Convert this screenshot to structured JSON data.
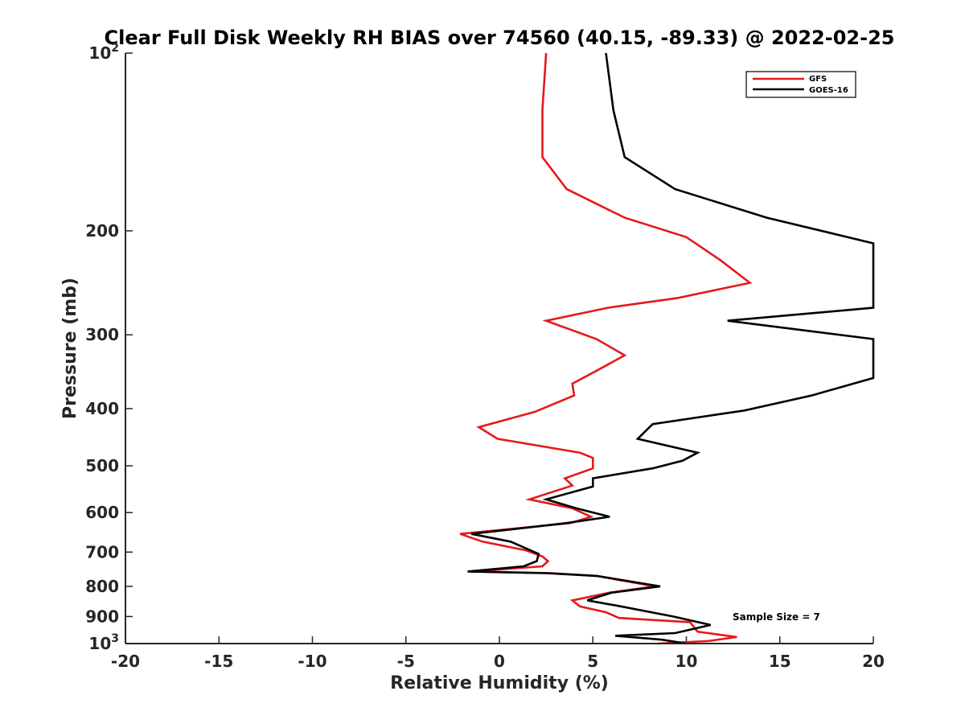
{
  "chart_data": {
    "type": "line",
    "title": "Clear Full Disk Weekly RH BIAS over 74560 (40.15, -89.33) @ 2022-02-25",
    "xlabel": "Relative Humidity (%)",
    "ylabel": "Pressure (mb)",
    "xlim": [
      -20,
      20
    ],
    "ylim": [
      100,
      1000
    ],
    "y_scale": "log",
    "y_reversed": true,
    "x_ticks": [
      "-20",
      "-15",
      "-10",
      "-5",
      "0",
      "5",
      "10",
      "15",
      "20"
    ],
    "y_ticks": [
      {
        "value": 100,
        "base": "10",
        "exp": "2"
      },
      {
        "value": 200,
        "label": "200"
      },
      {
        "value": 300,
        "label": "300"
      },
      {
        "value": 400,
        "label": "400"
      },
      {
        "value": 500,
        "label": "500"
      },
      {
        "value": 600,
        "label": "600"
      },
      {
        "value": 700,
        "label": "700"
      },
      {
        "value": 800,
        "label": "800"
      },
      {
        "value": 900,
        "label": "900"
      },
      {
        "value": 1000,
        "base": "10",
        "exp": "3"
      }
    ],
    "grid": false,
    "legend_position": "top-right",
    "annotation": "Sample Size = 7",
    "series": [
      {
        "name": "GFS",
        "color": "#e41a1c",
        "points": [
          [
            2.5,
            100
          ],
          [
            2.3,
            125
          ],
          [
            2.3,
            150
          ],
          [
            3.6,
            170
          ],
          [
            6.7,
            190
          ],
          [
            10.0,
            205
          ],
          [
            11.8,
            224
          ],
          [
            13.4,
            245
          ],
          [
            9.5,
            260
          ],
          [
            5.8,
            270
          ],
          [
            2.5,
            284
          ],
          [
            5.2,
            305
          ],
          [
            6.7,
            325
          ],
          [
            5.2,
            345
          ],
          [
            3.9,
            363
          ],
          [
            4.0,
            380
          ],
          [
            1.9,
            405
          ],
          [
            -1.1,
            430
          ],
          [
            -0.1,
            450
          ],
          [
            4.3,
            475
          ],
          [
            5.0,
            485
          ],
          [
            5.0,
            505
          ],
          [
            3.5,
            525
          ],
          [
            3.9,
            540
          ],
          [
            1.6,
            570
          ],
          [
            3.9,
            590
          ],
          [
            4.9,
            610
          ],
          [
            3.8,
            625
          ],
          [
            -2.1,
            652
          ],
          [
            -0.9,
            672
          ],
          [
            1.4,
            695
          ],
          [
            2.3,
            712
          ],
          [
            2.6,
            725
          ],
          [
            2.3,
            740
          ],
          [
            -1.5,
            755
          ],
          [
            2.8,
            760
          ],
          [
            5.2,
            768
          ],
          [
            8.3,
            800
          ],
          [
            5.9,
            820
          ],
          [
            3.9,
            845
          ],
          [
            4.3,
            865
          ],
          [
            5.7,
            885
          ],
          [
            6.4,
            905
          ],
          [
            10.2,
            920
          ],
          [
            10.6,
            955
          ],
          [
            12.7,
            975
          ],
          [
            11.2,
            990
          ],
          [
            8.5,
            1000
          ]
        ]
      },
      {
        "name": "GOES-16",
        "color": "#000000",
        "points": [
          [
            5.7,
            100
          ],
          [
            6.1,
            125
          ],
          [
            6.7,
            150
          ],
          [
            9.4,
            170
          ],
          [
            14.3,
            190
          ],
          [
            20.0,
            210
          ],
          [
            20.0,
            270
          ],
          [
            12.2,
            284
          ],
          [
            20.0,
            305
          ],
          [
            20.0,
            355
          ],
          [
            16.7,
            380
          ],
          [
            13.1,
            403
          ],
          [
            8.2,
            425
          ],
          [
            7.4,
            450
          ],
          [
            10.6,
            475
          ],
          [
            9.8,
            490
          ],
          [
            8.2,
            505
          ],
          [
            5.0,
            525
          ],
          [
            5.0,
            542
          ],
          [
            2.5,
            570
          ],
          [
            4.1,
            590
          ],
          [
            5.9,
            610
          ],
          [
            3.6,
            625
          ],
          [
            -1.5,
            652
          ],
          [
            0.6,
            672
          ],
          [
            2.1,
            705
          ],
          [
            2.0,
            725
          ],
          [
            1.3,
            740
          ],
          [
            -1.7,
            755
          ],
          [
            2.5,
            760
          ],
          [
            5.2,
            768
          ],
          [
            8.6,
            800
          ],
          [
            6.0,
            820
          ],
          [
            4.7,
            845
          ],
          [
            6.5,
            865
          ],
          [
            9.3,
            900
          ],
          [
            11.3,
            930
          ],
          [
            9.4,
            960
          ],
          [
            6.2,
            970
          ],
          [
            8.7,
            985
          ],
          [
            10.0,
            1000
          ]
        ]
      }
    ]
  }
}
